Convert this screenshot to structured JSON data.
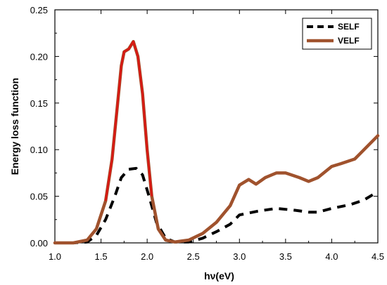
{
  "chart_data": {
    "type": "line",
    "title": "",
    "xlabel": "hν(eV)",
    "ylabel": "Energy loss function",
    "xlim": [
      1.0,
      4.5
    ],
    "ylim": [
      0.0,
      0.25
    ],
    "x_ticks": [
      1.0,
      1.5,
      2.0,
      2.5,
      3.0,
      3.5,
      4.0,
      4.5
    ],
    "x_tick_labels": [
      "1.0",
      "1.5",
      "2.0",
      "2.5",
      "3.0",
      "3.5",
      "4.0",
      "4.5"
    ],
    "y_ticks": [
      0.0,
      0.05,
      0.1,
      0.15,
      0.2,
      0.25
    ],
    "y_tick_labels": [
      "0.00",
      "0.05",
      "0.10",
      "0.15",
      "0.20",
      "0.25"
    ],
    "grid": false,
    "legend_position": "top-right",
    "series": [
      {
        "name": "SELF",
        "style": "dashed",
        "color": "#000000",
        "points": [
          [
            1.0,
            0.0
          ],
          [
            1.2,
            0.0
          ],
          [
            1.35,
            0.001
          ],
          [
            1.45,
            0.008
          ],
          [
            1.55,
            0.025
          ],
          [
            1.65,
            0.05
          ],
          [
            1.72,
            0.07
          ],
          [
            1.8,
            0.079
          ],
          [
            1.88,
            0.08
          ],
          [
            1.95,
            0.073
          ],
          [
            2.02,
            0.05
          ],
          [
            2.1,
            0.022
          ],
          [
            2.2,
            0.005
          ],
          [
            2.3,
            0.001
          ],
          [
            2.45,
            0.001
          ],
          [
            2.6,
            0.005
          ],
          [
            2.75,
            0.012
          ],
          [
            2.9,
            0.02
          ],
          [
            3.0,
            0.03
          ],
          [
            3.2,
            0.034
          ],
          [
            3.4,
            0.037
          ],
          [
            3.6,
            0.035
          ],
          [
            3.75,
            0.033
          ],
          [
            3.85,
            0.033
          ],
          [
            4.0,
            0.037
          ],
          [
            4.2,
            0.041
          ],
          [
            4.35,
            0.046
          ],
          [
            4.5,
            0.055
          ]
        ]
      },
      {
        "name": "VELF",
        "style": "solid",
        "color": "#a0522d",
        "peak_color": "#e01010",
        "points": [
          [
            1.0,
            0.0
          ],
          [
            1.2,
            0.0
          ],
          [
            1.35,
            0.003
          ],
          [
            1.45,
            0.015
          ],
          [
            1.55,
            0.045
          ],
          [
            1.62,
            0.09
          ],
          [
            1.68,
            0.15
          ],
          [
            1.72,
            0.19
          ],
          [
            1.75,
            0.205
          ],
          [
            1.8,
            0.208
          ],
          [
            1.85,
            0.216
          ],
          [
            1.9,
            0.2
          ],
          [
            1.95,
            0.16
          ],
          [
            2.0,
            0.1
          ],
          [
            2.05,
            0.05
          ],
          [
            2.12,
            0.015
          ],
          [
            2.2,
            0.003
          ],
          [
            2.3,
            0.001
          ],
          [
            2.45,
            0.003
          ],
          [
            2.6,
            0.01
          ],
          [
            2.75,
            0.022
          ],
          [
            2.9,
            0.04
          ],
          [
            3.0,
            0.062
          ],
          [
            3.1,
            0.068
          ],
          [
            3.18,
            0.063
          ],
          [
            3.28,
            0.07
          ],
          [
            3.4,
            0.075
          ],
          [
            3.5,
            0.075
          ],
          [
            3.65,
            0.07
          ],
          [
            3.75,
            0.066
          ],
          [
            3.85,
            0.07
          ],
          [
            4.0,
            0.082
          ],
          [
            4.1,
            0.085
          ],
          [
            4.25,
            0.09
          ],
          [
            4.4,
            0.105
          ],
          [
            4.5,
            0.115
          ]
        ]
      }
    ]
  }
}
